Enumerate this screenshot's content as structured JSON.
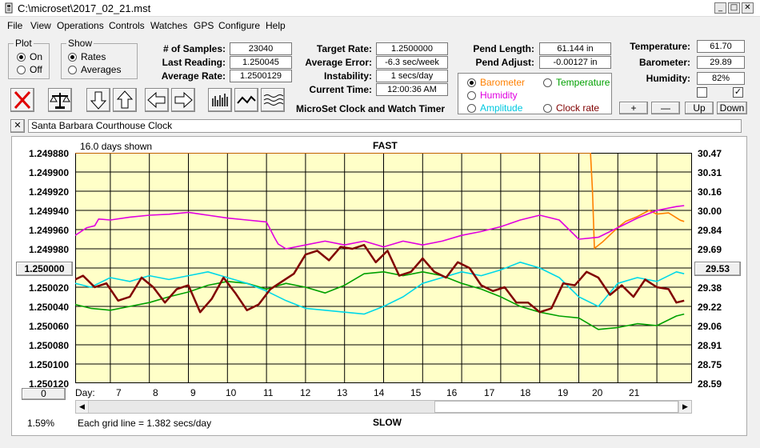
{
  "window": {
    "title": "C:\\microset\\2017_02_21.mst",
    "min": "_",
    "max": "□",
    "close": "✕"
  },
  "menu": [
    "File",
    "View",
    "Operations",
    "Controls",
    "Watches",
    "GPS",
    "Configure",
    "Help"
  ],
  "plot": {
    "legend": "Plot",
    "on": "On",
    "off": "Off",
    "selected": "On"
  },
  "show": {
    "legend": "Show",
    "rates": "Rates",
    "averages": "Averages",
    "selected": "Rates"
  },
  "stats": {
    "samples_label": "# of Samples:",
    "samples": "23040",
    "last_reading_label": "Last Reading:",
    "last_reading": "1.250045",
    "average_rate_label": "Average Rate:",
    "average_rate": "1.2500129",
    "target_rate_label": "Target Rate:",
    "target_rate": "1.2500000",
    "average_error_label": "Average Error:",
    "average_error": "-6.3 sec/week",
    "instability_label": "Instability:",
    "instability": "1 secs/day",
    "current_time_label": "Current Time:",
    "current_time": "12:00:36 AM",
    "pend_length_label": "Pend Length:",
    "pend_length": "61.144 in",
    "pend_adjust_label": "Pend Adjust:",
    "pend_adjust": "-0.00127 in",
    "temperature_label": "Temperature:",
    "temperature": "61.70",
    "barometer_label": "Barometer:",
    "barometer": "29.89",
    "humidity_label": "Humidity:",
    "humidity": "82%"
  },
  "app_name": "MicroSet Clock and Watch Timer",
  "sensors": {
    "barometer": "Barometer",
    "temperature": "Temperature",
    "humidity": "Humidity",
    "amplitude": "Amplitude",
    "clock_rate": "Clock rate",
    "selected": "Barometer",
    "colors": {
      "barometer": "#ff8000",
      "temperature": "#00a000",
      "humidity": "#e000e0",
      "amplitude": "#00d8e8",
      "clock_rate": "#800000"
    }
  },
  "checkboxes": {
    "first": "",
    "second": "✓"
  },
  "adjust_buttons": {
    "plus": "+",
    "minus": "—",
    "up": "Up",
    "down": "Down"
  },
  "toolbar_icons": [
    "cancel-icon",
    "balance-scale-icon",
    "arrow-down-icon",
    "arrow-up-icon",
    "arrow-left-icon",
    "arrow-right-icon",
    "bar-graph-icon",
    "line-graph-icon",
    "wave-graph-icon"
  ],
  "clock_name": "Santa Barbara Courthouse Clock",
  "close_x": "✕",
  "chart": {
    "days_shown": "16.0 days shown",
    "fast_label": "FAST",
    "slow_label": "SLOW",
    "center_button": "1.250000",
    "right_button": "29.53",
    "zero_button": "0",
    "day_label": "Day:",
    "percent": "1.59%",
    "grid_note": "Each grid line = 1.382 secs/day"
  },
  "chart_data": {
    "type": "line",
    "title": "FAST",
    "xlabel": "Day:",
    "x_ticks": [
      "7",
      "8",
      "9",
      "10",
      "11",
      "12",
      "13",
      "14",
      "15",
      "16",
      "17",
      "18",
      "19",
      "20",
      "21"
    ],
    "y_left_ticks": [
      "1.249880",
      "1.249900",
      "1.249920",
      "1.249940",
      "1.249960",
      "1.249980",
      "1.250000",
      "1.250020",
      "1.250040",
      "1.250060",
      "1.250080",
      "1.250100",
      "1.250120"
    ],
    "y_right_ticks": [
      "30.47",
      "30.31",
      "30.16",
      "30.00",
      "29.84",
      "29.69",
      "29.53",
      "29.38",
      "29.22",
      "29.06",
      "28.91",
      "28.75",
      "28.59"
    ],
    "xlim": [
      6.1,
      21.9
    ],
    "grid": true,
    "series": [
      {
        "name": "Barometer",
        "color": "#ff8000",
        "axis": "right",
        "x": [
          6.1,
          19.3,
          19.35,
          19.4,
          19.6,
          19.8,
          20.0,
          20.2,
          20.5,
          20.8,
          21.0,
          21.3,
          21.6,
          21.7
        ],
        "y": [
          30.47,
          30.47,
          30.16,
          29.69,
          29.74,
          29.8,
          29.86,
          29.91,
          29.95,
          30.0,
          29.97,
          29.98,
          29.92,
          29.91
        ]
      },
      {
        "name": "Humidity",
        "color": "#e000e0",
        "axis": "left",
        "x": [
          6.1,
          6.4,
          6.6,
          6.7,
          7.0,
          7.5,
          8.0,
          8.5,
          9.0,
          9.5,
          10.0,
          10.5,
          11.0,
          11.2,
          11.3,
          11.5,
          12.0,
          12.5,
          13.0,
          13.5,
          14.0,
          14.5,
          15.0,
          15.5,
          16.0,
          16.5,
          17.0,
          17.5,
          18.0,
          18.5,
          19.0,
          19.5,
          20.0,
          20.5,
          21.0,
          21.5,
          21.7
        ],
        "y": [
          1.249966,
          1.249958,
          1.249956,
          1.249949,
          1.24995,
          1.249947,
          1.249945,
          1.249944,
          1.249942,
          1.249945,
          1.249948,
          1.24995,
          1.249952,
          1.249968,
          1.249975,
          1.24998,
          1.249976,
          1.249972,
          1.249976,
          1.249972,
          1.249978,
          1.249972,
          1.249976,
          1.249972,
          1.249966,
          1.249962,
          1.249957,
          1.24995,
          1.249945,
          1.24995,
          1.24997,
          1.249968,
          1.249958,
          1.249948,
          1.24994,
          1.249936,
          1.249935
        ]
      },
      {
        "name": "Temperature",
        "color": "#00a000",
        "axis": "left",
        "x": [
          6.1,
          6.5,
          7.0,
          7.5,
          8.0,
          8.5,
          9.0,
          9.5,
          10.0,
          10.5,
          11.0,
          11.5,
          12.0,
          12.5,
          13.0,
          13.5,
          14.0,
          14.5,
          15.0,
          15.5,
          16.0,
          16.5,
          17.0,
          17.5,
          18.0,
          18.5,
          19.0,
          19.5,
          20.0,
          20.5,
          21.0,
          21.5,
          21.7
        ],
        "y": [
          1.250038,
          1.250042,
          1.250044,
          1.25004,
          1.250036,
          1.25003,
          1.250025,
          1.250018,
          1.250014,
          1.250016,
          1.250022,
          1.250016,
          1.25002,
          1.250026,
          1.250018,
          1.250006,
          1.250004,
          1.250008,
          1.250004,
          1.250008,
          1.250016,
          1.250022,
          1.25003,
          1.25004,
          1.250046,
          1.25005,
          1.250052,
          1.250064,
          1.250062,
          1.250058,
          1.25006,
          1.25005,
          1.250048
        ]
      },
      {
        "name": "Amplitude",
        "color": "#00d8e8",
        "axis": "left",
        "x": [
          6.1,
          6.5,
          7.0,
          7.5,
          8.0,
          8.5,
          9.0,
          9.5,
          10.0,
          10.5,
          11.0,
          11.5,
          12.0,
          12.5,
          13.0,
          13.5,
          14.0,
          14.5,
          15.0,
          15.5,
          16.0,
          16.5,
          17.0,
          17.5,
          18.0,
          18.5,
          19.0,
          19.5,
          20.0,
          20.5,
          21.0,
          21.5,
          21.7
        ],
        "y": [
          1.250016,
          1.25002,
          1.25001,
          1.250014,
          1.250008,
          1.250012,
          1.250008,
          1.250004,
          1.25001,
          1.250016,
          1.250024,
          1.250034,
          1.250042,
          1.250044,
          1.250046,
          1.250048,
          1.25004,
          1.25003,
          1.250016,
          1.25001,
          1.250004,
          1.250008,
          1.250002,
          1.249994,
          1.25,
          1.25001,
          1.25003,
          1.25004,
          1.250016,
          1.25001,
          1.250014,
          1.250004,
          1.250006
        ]
      },
      {
        "name": "Clock rate",
        "color": "#800000",
        "axis": "left",
        "x": [
          6.1,
          6.3,
          6.6,
          6.9,
          7.2,
          7.5,
          7.8,
          8.1,
          8.4,
          8.7,
          9.0,
          9.3,
          9.6,
          9.9,
          10.2,
          10.5,
          10.8,
          11.1,
          11.4,
          11.7,
          12.0,
          12.3,
          12.6,
          12.9,
          13.2,
          13.5,
          13.8,
          14.1,
          14.4,
          14.7,
          15.0,
          15.3,
          15.6,
          15.9,
          16.2,
          16.5,
          16.8,
          17.1,
          17.4,
          17.7,
          18.0,
          18.3,
          18.6,
          18.9,
          19.2,
          19.5,
          19.8,
          20.1,
          20.4,
          20.7,
          21.0,
          21.3,
          21.5,
          21.7
        ],
        "y": [
          1.250012,
          1.250008,
          1.25002,
          1.250016,
          1.250034,
          1.25003,
          1.25001,
          1.25002,
          1.250036,
          1.250022,
          1.250018,
          1.250046,
          1.250032,
          1.25001,
          1.250026,
          1.250044,
          1.250038,
          1.250022,
          1.250014,
          1.250006,
          1.249986,
          1.249982,
          1.249992,
          1.249978,
          1.24998,
          1.249976,
          1.249994,
          1.249982,
          1.250008,
          1.250004,
          1.24999,
          1.250004,
          1.25001,
          1.249994,
          1.25,
          1.250018,
          1.250024,
          1.25002,
          1.250036,
          1.250036,
          1.250046,
          1.250042,
          1.250016,
          1.250018,
          1.250004,
          1.25001,
          1.250028,
          1.250018,
          1.25003,
          1.250012,
          1.25002,
          1.250022,
          1.250036,
          1.250034
        ]
      }
    ]
  }
}
